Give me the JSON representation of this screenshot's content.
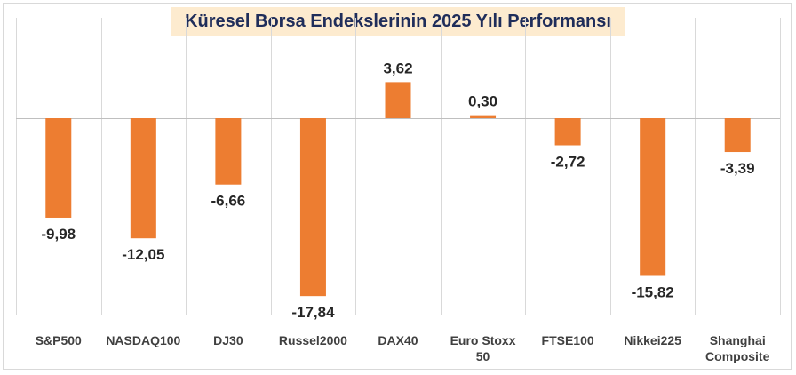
{
  "chart_data": {
    "type": "bar",
    "title": "Küresel Borsa Endekslerinin 2025 Yılı Performansı",
    "categories": [
      "S&P500",
      "NASDAQ100",
      "DJ30",
      "Russel2000",
      "DAX40",
      "Euro Stoxx 50",
      "FTSE100",
      "Nikkei225",
      "Shanghai Composite"
    ],
    "category_lines": [
      [
        "S&P500"
      ],
      [
        "NASDAQ100"
      ],
      [
        "DJ30"
      ],
      [
        "Russel2000"
      ],
      [
        "DAX40"
      ],
      [
        "Euro Stoxx",
        "50"
      ],
      [
        "FTSE100"
      ],
      [
        "Nikkei225"
      ],
      [
        "Shanghai",
        "Composite"
      ]
    ],
    "values": [
      -9.98,
      -12.05,
      -6.66,
      -17.84,
      3.62,
      0.3,
      -2.72,
      -15.82,
      -3.39
    ],
    "value_labels": [
      "-9,98",
      "-12,05",
      "-6,66",
      "-17,84",
      "3,62",
      "0,30",
      "-2,72",
      "-15,82",
      "-3,39"
    ],
    "xlabel": "",
    "ylabel": "",
    "ylim": [
      -20,
      9
    ],
    "grid": "vertical",
    "legend": "none",
    "colors": {
      "bar": "#ed7d31",
      "gridline": "#d9d9d9",
      "axis": "#bfbfbf"
    }
  }
}
